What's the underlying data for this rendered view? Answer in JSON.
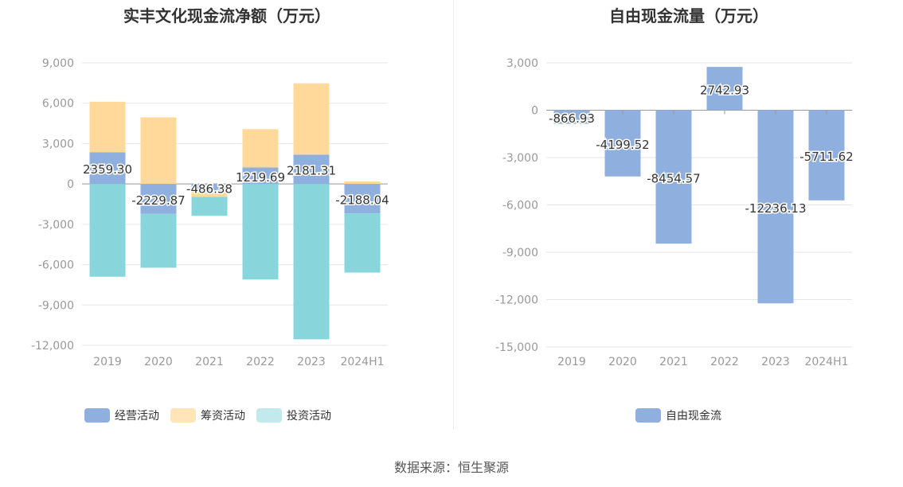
{
  "source_text": "数据来源：恒生聚源",
  "colors": {
    "operating": "#8fb0de",
    "financing": "#ffd99a",
    "investing": "#88d6dc",
    "free": "#8fb0de"
  },
  "chart_data": [
    {
      "type": "bar",
      "stacked": true,
      "title": "实丰文化现金流净额（万元）",
      "categories": [
        "2019",
        "2020",
        "2021",
        "2022",
        "2023",
        "2024H1"
      ],
      "ylim": [
        -12000,
        9000
      ],
      "yticks": [
        9000,
        6000,
        3000,
        0,
        -3000,
        -6000,
        -9000,
        -12000
      ],
      "ytick_labels": [
        "9,000",
        "6,000",
        "3,000",
        "0",
        "-3,000",
        "-6,000",
        "-9,000",
        "-12,000"
      ],
      "grid": true,
      "legend_position": "bottom",
      "series": [
        {
          "name": "经营活动",
          "values": [
            2359.3,
            -2229.87,
            -486.38,
            1219.69,
            2181.31,
            -2188.04
          ],
          "labels": [
            "2359.30",
            "-2229.87",
            "-486.38",
            "1219.69",
            "2181.31",
            "-2188.04"
          ]
        },
        {
          "name": "筹资活动",
          "values": [
            3750,
            4950,
            -480,
            2850,
            5300,
            180
          ]
        },
        {
          "name": "投资活动",
          "values": [
            -6900,
            -4000,
            -1400,
            -7100,
            -11550,
            -4400
          ]
        }
      ]
    },
    {
      "type": "bar",
      "title": "自由现金流量（万元）",
      "categories": [
        "2019",
        "2020",
        "2021",
        "2022",
        "2023",
        "2024H1"
      ],
      "ylim": [
        -15000,
        3000
      ],
      "yticks": [
        3000,
        0,
        -3000,
        -6000,
        -9000,
        -12000,
        -15000
      ],
      "ytick_labels": [
        "3,000",
        "0",
        "-3,000",
        "-6,000",
        "-9,000",
        "-12,000",
        "-15,000"
      ],
      "grid": true,
      "legend_position": "bottom",
      "series": [
        {
          "name": "自由现金流",
          "values": [
            -866.93,
            -4199.52,
            -8454.57,
            2742.93,
            -12236.13,
            -5711.62
          ],
          "labels": [
            "-866.93",
            "-4199.52",
            "-8454.57",
            "2742.93",
            "-12236.13",
            "-5711.62"
          ]
        }
      ]
    }
  ]
}
